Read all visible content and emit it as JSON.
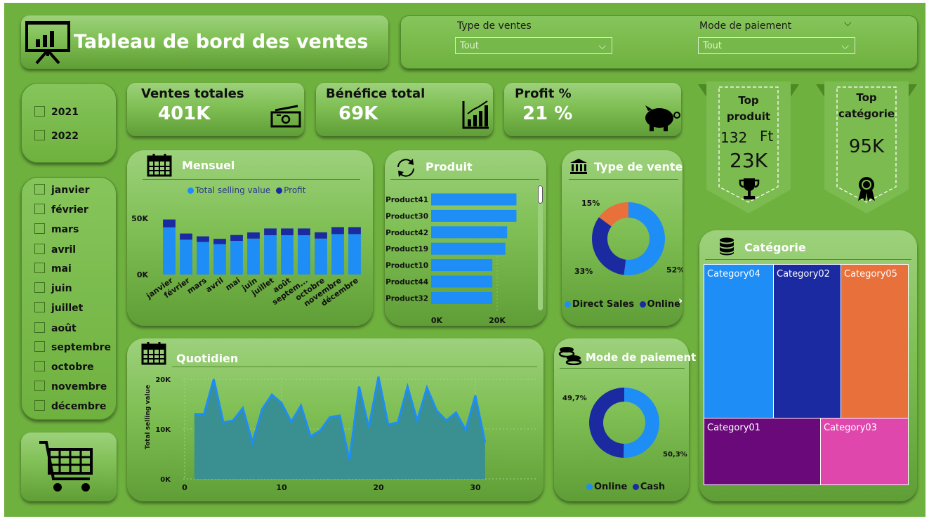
{
  "header": {
    "title": "Tableau de bord des ventes"
  },
  "filters": {
    "type_ventes": {
      "label": "Type de ventes",
      "value": "Tout"
    },
    "mode_paiement": {
      "label": "Mode de paiement",
      "value": "Tout"
    }
  },
  "kpis": {
    "ventes": {
      "label": "Ventes totales",
      "value": "401K"
    },
    "benefice": {
      "label": "Bénéfice total",
      "value": "69K"
    },
    "profit": {
      "label": "Profit %",
      "value": "21 %"
    }
  },
  "years": [
    "2021",
    "2022"
  ],
  "months": [
    "janvier",
    "février",
    "mars",
    "avril",
    "mai",
    "juin",
    "juillet",
    "août",
    "septembre",
    "octobre",
    "novembre",
    "décembre"
  ],
  "top_produit": {
    "title": "Top produit",
    "title1": "Top",
    "title2": "produit",
    "id": "132",
    "unit": "Ft",
    "value": "23K"
  },
  "top_categorie": {
    "title1": "Top",
    "title2": "catégorie",
    "value": "95K"
  },
  "colors": {
    "background": "#6fb13f",
    "blue": "#1e8df5",
    "navy": "#1b2aa0",
    "orange": "#e8703a",
    "purple": "#6a0a7a",
    "pink": "#df47ad",
    "area": "#3a8f90"
  },
  "icons": {
    "header": "presentation-chart-icon",
    "cart": "shopping-cart-icon",
    "calendar": "calendar-icon",
    "refresh": "refresh-icon",
    "bank": "bank-icon",
    "coins": "coins-icon",
    "database": "database-icon",
    "trophy": "trophy-icon",
    "award": "award-ribbon-icon",
    "money": "money-bill-icon",
    "growth": "growth-chart-icon",
    "piggy": "piggy-bank-icon"
  },
  "chart_data": [
    {
      "id": "mensuel",
      "title": "Mensuel",
      "type": "bar",
      "stacked": true,
      "categories": [
        "janvier",
        "février",
        "mars",
        "avril",
        "mai",
        "juin",
        "juillet",
        "août",
        "septem...",
        "octobre",
        "novembre",
        "décembre"
      ],
      "series": [
        {
          "name": "Total selling value",
          "values": [
            42000,
            31000,
            29000,
            27000,
            30000,
            32000,
            35000,
            35000,
            35000,
            32000,
            36000,
            36000
          ]
        },
        {
          "name": "Profit",
          "values": [
            7000,
            5500,
            5000,
            4800,
            5200,
            5500,
            6000,
            6000,
            6000,
            5600,
            6200,
            6200
          ]
        }
      ],
      "yticks": [
        "0K",
        "50K"
      ],
      "ylim": [
        0,
        60000
      ],
      "legend": "top"
    },
    {
      "id": "produit",
      "title": "Produit",
      "type": "bar",
      "orientation": "horizontal",
      "categories": [
        "Product41",
        "Product30",
        "Product42",
        "Product19",
        "Product10",
        "Product44",
        "Product32"
      ],
      "values": [
        23000,
        23000,
        20500,
        20000,
        16500,
        16500,
        16500
      ],
      "xticks": [
        "0K",
        "20K"
      ],
      "xlim": [
        0,
        25000
      ]
    },
    {
      "id": "type_vente",
      "title": "Type de vente",
      "type": "pie",
      "donut": true,
      "slices": [
        {
          "name": "Direct Sales",
          "value": 52,
          "label": "52%"
        },
        {
          "name": "Online",
          "value": 33,
          "label": "33%"
        },
        {
          "name": "",
          "value": 15,
          "label": "15%"
        }
      ],
      "legend_items": [
        "Direct Sales",
        "Online"
      ],
      "legend": "bottom"
    },
    {
      "id": "quotidien",
      "title": "Quotidien",
      "type": "area",
      "x": [
        1,
        2,
        3,
        4,
        5,
        6,
        7,
        8,
        9,
        10,
        11,
        12,
        13,
        14,
        15,
        16,
        17,
        18,
        19,
        20,
        21,
        22,
        23,
        24,
        25,
        26,
        27,
        28,
        29,
        30,
        31
      ],
      "y": [
        13000,
        13000,
        20000,
        11300,
        11700,
        14200,
        7300,
        14000,
        16900,
        15200,
        11400,
        14700,
        8500,
        9700,
        12400,
        12700,
        3800,
        18500,
        10300,
        20500,
        10900,
        11300,
        18500,
        11700,
        18300,
        13700,
        11700,
        13300,
        9800,
        16700,
        7300
      ],
      "ylabel": "Total selling value",
      "yticks": [
        "0K",
        "10K",
        "20K"
      ],
      "xticks": [
        "0",
        "10",
        "20",
        "30"
      ],
      "ylim": [
        0,
        20000
      ],
      "xlim": [
        0,
        32
      ],
      "grid": true
    },
    {
      "id": "mode_paiement",
      "title": "Mode de paiement",
      "type": "pie",
      "donut": true,
      "slices": [
        {
          "name": "Online",
          "value": 50.3,
          "label": "50,3%"
        },
        {
          "name": "Cash",
          "value": 49.7,
          "label": "49,7%"
        }
      ],
      "legend_items": [
        "Online",
        "Cash"
      ],
      "legend": "bottom"
    },
    {
      "id": "categorie",
      "title": "Catégorie",
      "type": "treemap",
      "items": [
        {
          "name": "Category04",
          "value": 95000
        },
        {
          "name": "Category02",
          "value": 90000
        },
        {
          "name": "Category05",
          "value": 89000
        },
        {
          "name": "Category01",
          "value": 66000
        },
        {
          "name": "Category03",
          "value": 47000
        }
      ]
    }
  ]
}
